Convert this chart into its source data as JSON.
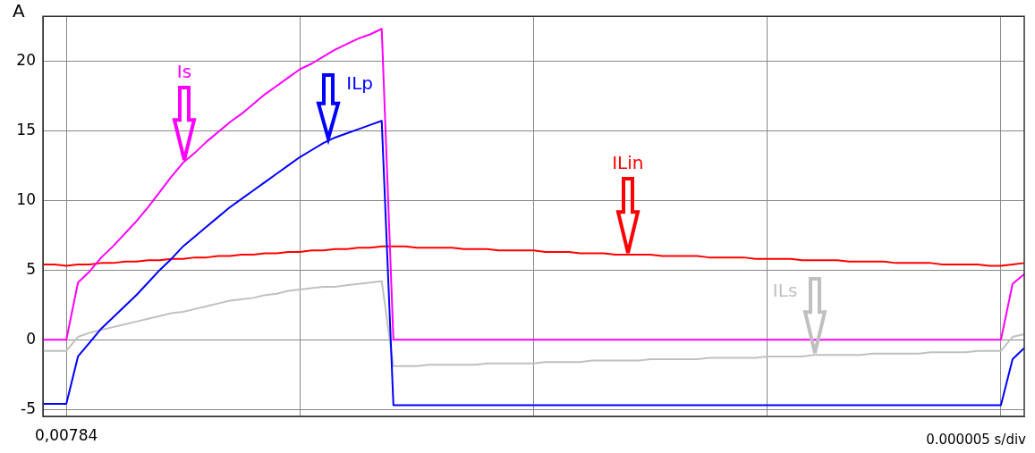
{
  "chart_data": {
    "type": "line",
    "ylabel": "A",
    "marker": "none",
    "line_style": "solid",
    "grid": true,
    "legend": false,
    "categories": [
      null,
      null,
      "0,00784",
      null,
      null,
      null,
      null,
      null,
      null,
      null,
      null,
      null,
      null,
      null,
      null,
      null,
      null,
      null,
      null,
      null,
      null,
      null,
      null,
      null,
      null,
      null,
      null,
      null,
      null,
      null,
      null,
      null,
      null,
      null,
      null,
      null,
      null,
      null,
      null,
      null,
      null,
      null,
      null,
      null,
      null,
      null,
      null,
      null,
      null,
      null,
      null,
      null,
      null,
      null,
      null,
      null,
      null,
      null,
      null,
      null,
      null,
      null,
      null,
      null,
      null,
      null,
      null,
      null,
      null,
      null,
      null,
      null,
      null,
      null,
      null,
      null,
      null,
      null,
      null,
      null,
      null,
      null,
      null,
      null,
      null
    ],
    "ylim": [
      -5.5,
      23.2
    ],
    "yticks": [
      -5,
      0,
      5,
      10,
      15,
      20
    ],
    "annotations": [
      "0.000005 s/div"
    ],
    "series": [
      {
        "name": "Is",
        "color": "#ff00ff",
        "values": [
          0,
          0,
          0,
          4.1,
          4.9,
          5.9,
          6.7,
          7.6,
          8.5,
          9.5,
          10.6,
          11.7,
          12.7,
          13.4,
          14.2,
          14.9,
          15.6,
          16.2,
          16.9,
          17.6,
          18.2,
          18.8,
          19.4,
          19.8,
          20.3,
          20.8,
          21.2,
          21.6,
          21.9,
          22.3,
          0,
          0,
          0,
          0,
          0,
          0,
          0,
          0,
          0,
          0,
          0,
          0,
          0,
          0,
          0,
          0,
          0,
          0,
          0,
          0,
          0,
          0,
          0,
          0,
          0,
          0,
          0,
          0,
          0,
          0,
          0,
          0,
          0,
          0,
          0,
          0,
          0,
          0,
          0,
          0,
          0,
          0,
          0,
          0,
          0,
          0,
          0,
          0,
          0,
          0,
          0,
          0,
          0,
          4.0,
          4.7
        ]
      },
      {
        "name": "ILp",
        "color": "#0000ff",
        "values": [
          -4.6,
          -4.6,
          -4.6,
          -1.2,
          -0.2,
          0.8,
          1.6,
          2.4,
          3.2,
          4.1,
          5.0,
          5.8,
          6.7,
          7.4,
          8.1,
          8.8,
          9.5,
          10.1,
          10.7,
          11.3,
          11.9,
          12.5,
          13.1,
          13.6,
          14.1,
          14.5,
          14.8,
          15.1,
          15.4,
          15.7,
          -4.7,
          -4.7,
          -4.7,
          -4.7,
          -4.7,
          -4.7,
          -4.7,
          -4.7,
          -4.7,
          -4.7,
          -4.7,
          -4.7,
          -4.7,
          -4.7,
          -4.7,
          -4.7,
          -4.7,
          -4.7,
          -4.7,
          -4.7,
          -4.7,
          -4.7,
          -4.7,
          -4.7,
          -4.7,
          -4.7,
          -4.7,
          -4.7,
          -4.7,
          -4.7,
          -4.7,
          -4.7,
          -4.7,
          -4.7,
          -4.7,
          -4.7,
          -4.7,
          -4.7,
          -4.7,
          -4.7,
          -4.7,
          -4.7,
          -4.7,
          -4.7,
          -4.7,
          -4.7,
          -4.7,
          -4.7,
          -4.7,
          -4.7,
          -4.7,
          -4.7,
          -4.7,
          -1.4,
          -0.6
        ]
      },
      {
        "name": "ILin",
        "color": "#ff0000",
        "values": [
          5.4,
          5.4,
          5.3,
          5.4,
          5.4,
          5.5,
          5.5,
          5.6,
          5.6,
          5.7,
          5.7,
          5.8,
          5.8,
          5.9,
          5.9,
          6.0,
          6.0,
          6.1,
          6.1,
          6.2,
          6.2,
          6.3,
          6.3,
          6.4,
          6.4,
          6.5,
          6.5,
          6.6,
          6.6,
          6.7,
          6.7,
          6.7,
          6.6,
          6.6,
          6.6,
          6.6,
          6.5,
          6.5,
          6.5,
          6.4,
          6.4,
          6.4,
          6.4,
          6.3,
          6.3,
          6.3,
          6.2,
          6.2,
          6.2,
          6.1,
          6.1,
          6.1,
          6.1,
          6.0,
          6.0,
          6.0,
          6.0,
          5.9,
          5.9,
          5.9,
          5.9,
          5.8,
          5.8,
          5.8,
          5.8,
          5.7,
          5.7,
          5.7,
          5.7,
          5.6,
          5.6,
          5.6,
          5.6,
          5.5,
          5.5,
          5.5,
          5.5,
          5.4,
          5.4,
          5.4,
          5.4,
          5.3,
          5.3,
          5.4,
          5.5
        ]
      },
      {
        "name": "ILs",
        "color": "#c0c0c0",
        "values": [
          -0.8,
          -0.8,
          -0.8,
          0.2,
          0.5,
          0.7,
          0.9,
          1.1,
          1.3,
          1.5,
          1.7,
          1.9,
          2.0,
          2.2,
          2.4,
          2.6,
          2.8,
          2.9,
          3.0,
          3.2,
          3.3,
          3.5,
          3.6,
          3.7,
          3.8,
          3.8,
          3.9,
          4.0,
          4.1,
          4.2,
          -1.9,
          -1.9,
          -1.9,
          -1.8,
          -1.8,
          -1.8,
          -1.8,
          -1.8,
          -1.7,
          -1.7,
          -1.7,
          -1.7,
          -1.7,
          -1.6,
          -1.6,
          -1.6,
          -1.6,
          -1.5,
          -1.5,
          -1.5,
          -1.5,
          -1.5,
          -1.4,
          -1.4,
          -1.4,
          -1.4,
          -1.4,
          -1.3,
          -1.3,
          -1.3,
          -1.3,
          -1.3,
          -1.2,
          -1.2,
          -1.2,
          -1.2,
          -1.1,
          -1.1,
          -1.1,
          -1.1,
          -1.1,
          -1.0,
          -1.0,
          -1.0,
          -1.0,
          -1.0,
          -0.9,
          -0.9,
          -0.9,
          -0.9,
          -0.8,
          -0.8,
          -0.8,
          0.2,
          0.4
        ]
      }
    ]
  }
}
